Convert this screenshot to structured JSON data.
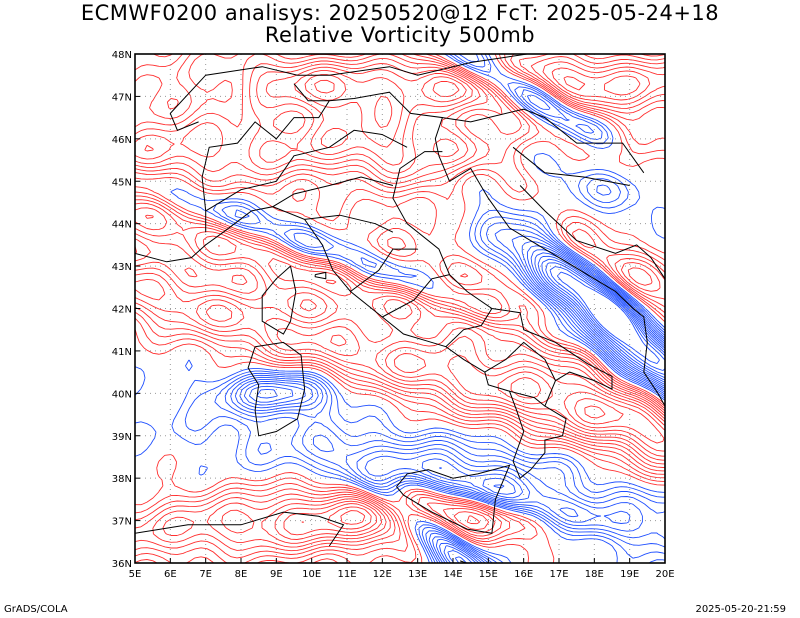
{
  "title_line1": "ECMWF0200 analisys: 20250520@12 FcT: 2025-05-24+18",
  "title_line2": "Relative Vorticity 500mb",
  "footer_left": "GrADS/COLA",
  "footer_right": "2025-05-20-21:59",
  "map": {
    "lon_range": [
      5,
      20
    ],
    "lat_range": [
      36,
      48
    ],
    "lon_ticks": [
      "5E",
      "6E",
      "7E",
      "8E",
      "9E",
      "10E",
      "11E",
      "12E",
      "13E",
      "14E",
      "15E",
      "16E",
      "17E",
      "18E",
      "19E",
      "20E"
    ],
    "lat_ticks": [
      "36N",
      "37N",
      "38N",
      "39N",
      "40N",
      "41N",
      "42N",
      "43N",
      "44N",
      "45N",
      "46N",
      "47N",
      "48N"
    ],
    "colors": {
      "positive_vorticity": "#ff3030",
      "negative_vorticity": "#2050ff",
      "coastline": "#000000",
      "grid": "#9a9a9a"
    }
  }
}
